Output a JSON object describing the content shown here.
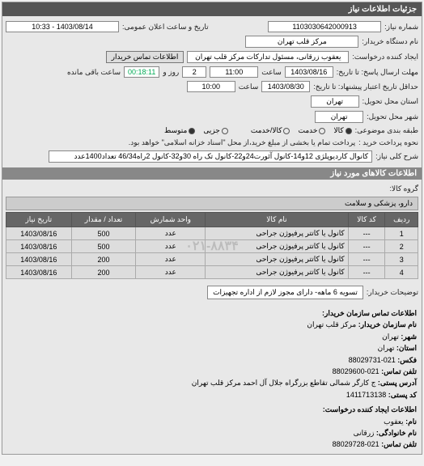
{
  "panel_title": "جزئیات اطلاعات نیاز",
  "form": {
    "req_number_lbl": "شماره نیاز:",
    "req_number": "1103030642000913",
    "announce_lbl": "تاریخ و ساعت اعلان عمومی:",
    "announce_val": "1403/08/14 - 10:33",
    "device_lbl": "نام دستگاه خریدار:",
    "device_val": "مرکز قلب تهران",
    "creator_lbl": "ایجاد کننده درخواست:",
    "creator_val": "یعقوب زرقانی، مسئول تدارکات مرکز قلب تهران",
    "contact_btn": "اطلاعات تماس خریدار",
    "deadline_lbl": "مهلت ارسال پاسخ: تا تاریخ:",
    "deadline_date": "1403/08/16",
    "deadline_time_lbl": "ساعت",
    "deadline_time": "11:00",
    "days_lbl": "روز و",
    "days_val": "2",
    "remain_lbl": "ساعت باقی مانده",
    "remain_val": "00:18:11",
    "valid_lbl": "حداقل تاریخ اعتبار پیشنهاد: تا تاریخ:",
    "valid_date": "1403/08/30",
    "valid_time_lbl": "ساعت",
    "valid_time": "10:00",
    "state_lbl": "استان محل تحویل:",
    "state_val": "تهران",
    "city_lbl": "شهر محل تحویل:",
    "city_val": "تهران",
    "budget_lbl": "طبقه بندی موضوعی:",
    "budget_opts": [
      "کالا",
      "خدمت",
      "کالا/خدمت"
    ],
    "budget_sel": 0,
    "size_lbl": "",
    "size_opts": [
      "جزیی",
      "متوسط"
    ],
    "size_sel": 1,
    "pay_lbl": "نحوه پرداخت خرید :",
    "pay_note": "پرداخت تمام یا بخشی از مبلغ خرید،از محل \"اسناد خزانه اسلامی\" خواهد بود.",
    "title_lbl": "شرح کلی نیاز:",
    "title_val": "کانوال کاردیوپلژی 12و14-کانول آئورت24و22-کانول تک راه 30و32-کانول 2راه46/34 تعداد1400عدد"
  },
  "items_header": "اطلاعات کالاهای مورد نیاز",
  "group_lbl": "گروه کالا:",
  "group_val": "دارو، پزشکی و سلامت",
  "table": {
    "cols": [
      "ردیف",
      "کد کالا",
      "نام کالا",
      "واحد شمارش",
      "تعداد / مقدار",
      "تاریخ نیاز"
    ],
    "rows": [
      [
        "1",
        "---",
        "کانول یا کاتتر پرفیوژن جراحی",
        "عدد",
        "500",
        "1403/08/16"
      ],
      [
        "2",
        "---",
        "کانول یا کاتتر پرفیوژن جراحی",
        "عدد",
        "500",
        "1403/08/16"
      ],
      [
        "3",
        "---",
        "کانول یا کاتتر پرفیوژن جراحی",
        "عدد",
        "200",
        "1403/08/16"
      ],
      [
        "4",
        "---",
        "کانول یا کاتتر پرفیوژن جراحی",
        "عدد",
        "200",
        "1403/08/16"
      ]
    ]
  },
  "buyer_desc_lbl": "توضیحات خریدار:",
  "buyer_desc_val": "تسویه 6 ماهه- دارای مجوز لازم از اداره تجهیزات",
  "contact_header": "اطلاعات تماس سازمان خریدار:",
  "contact": {
    "org_lbl": "نام سازمان خریدار:",
    "org": "مرکز قلب تهران",
    "city_lbl": "شهر:",
    "city": "تهران",
    "prov_lbl": "استان:",
    "prov": "تهران",
    "fax_lbl": "فکس:",
    "fax": "021-88029731",
    "tel_lbl": "تلفن تماس:",
    "tel": "021-88029600",
    "addr_lbl": "آدرس پستی:",
    "addr": "ج کارگر شمالی تقاطع بزرگراه جلال آل احمد مرکز قلب تهران",
    "post_lbl": "کد پستی:",
    "post": "1411713138"
  },
  "creator_header": "اطلاعات ایجاد کننده درخواست:",
  "creator_info": {
    "name_lbl": "نام:",
    "name": "یعقوب",
    "fam_lbl": "نام خانوادگی:",
    "fam": "زرقانی",
    "tel_lbl": "تلفن تماس:",
    "tel": "021-88029728"
  },
  "watermark": "۰۲۱-۸۸۳۴"
}
